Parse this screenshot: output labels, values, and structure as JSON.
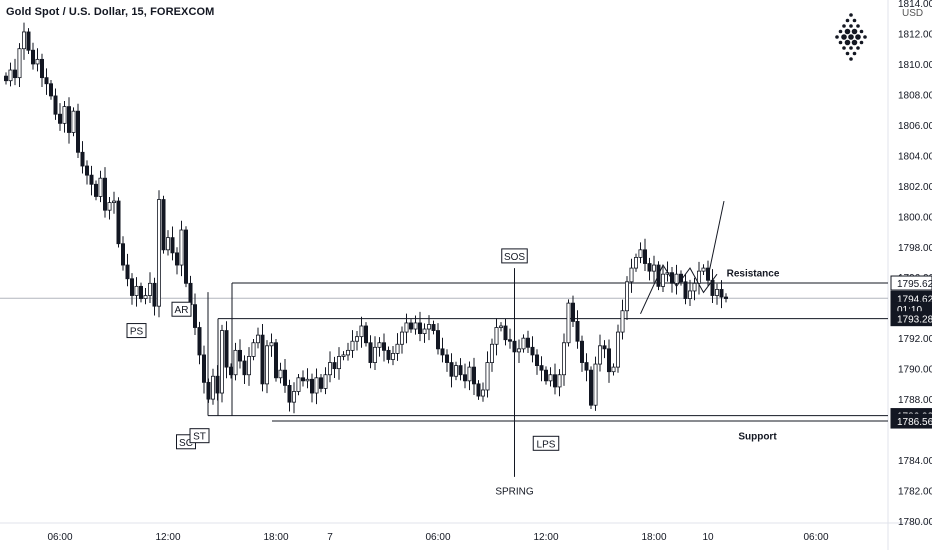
{
  "header": {
    "title": "Gold Spot / U.S. Dollar, 15, FOREXCOM",
    "currency": "USD"
  },
  "colors": {
    "candle": "#131722",
    "price_line": "#b2b5be",
    "badge_bg": "#131722",
    "badge_text": "#ffffff",
    "axis_text": "#131722"
  },
  "chart_data": {
    "type": "candlestick",
    "title": "Gold Spot / U.S. Dollar, 15, FOREXCOM",
    "ylabel": "USD",
    "ylim": [
      1780,
      1814
    ],
    "y_ticks": [
      "1814.00",
      "1812.00",
      "1810.00",
      "1808.00",
      "1806.00",
      "1804.00",
      "1802.00",
      "1800.00",
      "1798.00",
      "1796.00",
      "1792.00",
      "1790.00",
      "1788.00",
      "1784.00",
      "1782.00",
      "1780.00"
    ],
    "x_ticks": [
      "06:00",
      "12:00",
      "18:00",
      "7",
      "06:00",
      "12:00",
      "18:00",
      "10",
      "06:00"
    ],
    "x_tick_index": [
      12,
      36,
      60,
      72,
      96,
      120,
      144,
      156,
      180
    ],
    "last_index": 160,
    "closes": [
      1808.9,
      1809.6,
      1809.1,
      1811.0,
      1812.1,
      1810.9,
      1810.0,
      1810.3,
      1809.1,
      1808.7,
      1807.9,
      1806.7,
      1806.1,
      1807.2,
      1805.5,
      1806.9,
      1804.2,
      1803.3,
      1802.7,
      1802.1,
      1801.3,
      1802.5,
      1800.4,
      1800.9,
      1801.0,
      1798.2,
      1796.8,
      1795.9,
      1794.8,
      1795.4,
      1794.6,
      1794.8,
      1795.6,
      1794.1,
      1801.1,
      1797.8,
      1798.6,
      1797.6,
      1796.8,
      1799.1,
      1795.6,
      1794.2,
      1792.7,
      1790.9,
      1789.1,
      1788.0,
      1789.5,
      1788.4,
      1792.5,
      1790.1,
      1789.6,
      1791.2,
      1790.5,
      1789.6,
      1790.8,
      1791.7,
      1792.2,
      1789.0,
      1791.5,
      1791.7,
      1789.4,
      1789.9,
      1788.9,
      1787.8,
      1788.5,
      1789.4,
      1789.2,
      1789.3,
      1788.4,
      1789.4,
      1788.7,
      1789.6,
      1790.4,
      1790.0,
      1790.8,
      1790.9,
      1791.2,
      1791.8,
      1792.1,
      1792.8,
      1791.7,
      1790.4,
      1791.4,
      1791.7,
      1791.2,
      1790.6,
      1791.0,
      1791.6,
      1792.4,
      1793.0,
      1792.6,
      1793.0,
      1792.3,
      1792.6,
      1792.9,
      1792.5,
      1791.3,
      1790.9,
      1790.4,
      1789.5,
      1790.2,
      1789.6,
      1789.2,
      1790.1,
      1789.0,
      1788.2,
      1788.6,
      1790.4,
      1791.6,
      1792.7,
      1792.8,
      1791.9,
      1791.8,
      1791.1,
      1791.3,
      1792.0,
      1791.4,
      1790.9,
      1790.2,
      1789.9,
      1789.2,
      1789.6,
      1788.8,
      1789.6,
      1791.7,
      1794.3,
      1793.1,
      1791.8,
      1790.4,
      1789.9,
      1787.6,
      1790.3,
      1791.5,
      1791.3,
      1789.8,
      1790.1,
      1792.4,
      1793.8,
      1795.7,
      1796.6,
      1797.3,
      1797.8,
      1796.9,
      1796.4,
      1796.8,
      1795.4,
      1796.2,
      1796.3,
      1795.6,
      1796.2,
      1795.7,
      1794.6,
      1795.1,
      1795.6,
      1796.4,
      1796.6,
      1795.8,
      1794.8,
      1795.2,
      1794.7,
      1794.6
    ],
    "levels": {
      "resistance": 1795.62,
      "support": 1786.56,
      "last_price": 1794.62,
      "upper_range": 1795.62,
      "mid_range": 1793.28,
      "lower_range": 1786.92
    },
    "price_labels": [
      {
        "value": "1795.62",
        "at": 1795.62,
        "dark": false
      },
      {
        "value": "1794.62",
        "at": 1794.62,
        "dark": true
      },
      {
        "value": "01:10",
        "at": 1793.9,
        "dark": true
      },
      {
        "value": "1793.28",
        "at": 1793.28,
        "dark": true
      },
      {
        "value": "1786.92",
        "at": 1786.92,
        "dark": true
      },
      {
        "value": "1786.56",
        "at": 1786.56,
        "dark": true
      }
    ],
    "annotations": [
      {
        "text": "PS",
        "index": 29,
        "price": 1792.5,
        "boxed": true
      },
      {
        "text": "AR",
        "index": 39,
        "price": 1793.9,
        "boxed": true
      },
      {
        "text": "SC",
        "index": 40,
        "price": 1785.2,
        "boxed": true
      },
      {
        "text": "ST",
        "index": 43,
        "price": 1785.6,
        "boxed": true
      },
      {
        "text": "SOS",
        "index": 113,
        "price": 1797.4,
        "boxed": true
      },
      {
        "text": "LPS",
        "index": 120,
        "price": 1785.1,
        "boxed": true
      },
      {
        "text": "SPRING",
        "index": 113,
        "price": 1782.0,
        "boxed": false
      },
      {
        "text": "Resistance",
        "index": 166,
        "price": 1796.3,
        "boxed": false
      },
      {
        "text": "Support",
        "index": 167,
        "price": 1785.6,
        "boxed": false
      }
    ]
  }
}
